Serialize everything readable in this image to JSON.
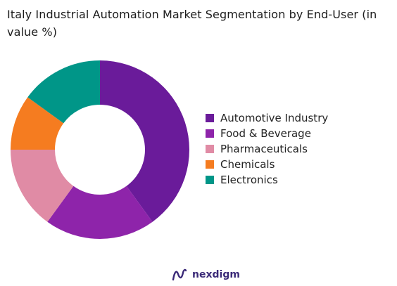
{
  "chart_data": {
    "type": "donut",
    "title": "Italy Industrial Automation Market Segmentation by End-User (in value %)",
    "categories": [
      "Automotive Industry",
      "Food & Beverage",
      "Pharmaceuticals",
      "Chemicals",
      "Electronics"
    ],
    "values": [
      40,
      20,
      15,
      10,
      15
    ],
    "colors": [
      "#6a1b9a",
      "#8e24aa",
      "#e08ba5",
      "#f57c20",
      "#009688"
    ],
    "legend_position": "right"
  },
  "brand": {
    "name": "nexdigm"
  }
}
